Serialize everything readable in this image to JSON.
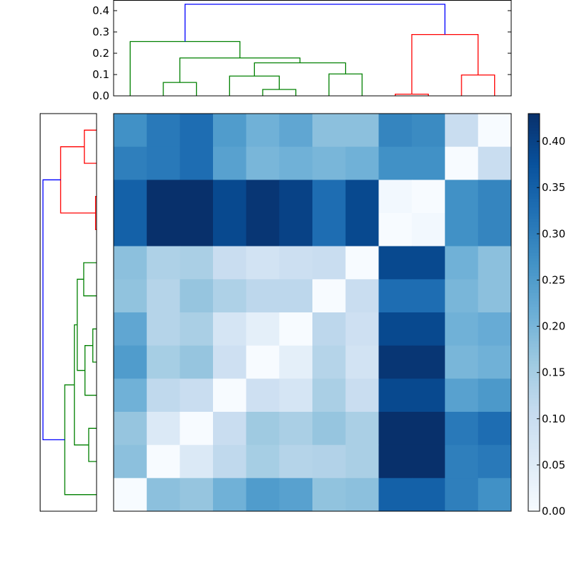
{
  "chart_data": [
    {
      "type": "heatmap",
      "colormap": "Blues",
      "vmin": 0.0,
      "vmax": 0.43,
      "colorbar": {
        "ticks": [
          "0.00",
          "0.05",
          "0.10",
          "0.15",
          "0.20",
          "0.25",
          "0.30",
          "0.35",
          "0.40"
        ],
        "tick_values": [
          0,
          0.05,
          0.1,
          0.15,
          0.2,
          0.25,
          0.3,
          0.35,
          0.4
        ]
      },
      "values": [
        [
          0.27,
          0.31,
          0.33,
          0.25,
          0.21,
          0.23,
          0.18,
          0.18,
          0.29,
          0.28,
          0.1,
          0.0
        ],
        [
          0.3,
          0.31,
          0.33,
          0.24,
          0.2,
          0.21,
          0.2,
          0.21,
          0.27,
          0.27,
          0.0,
          0.1
        ],
        [
          0.35,
          0.43,
          0.43,
          0.39,
          0.42,
          0.4,
          0.33,
          0.39,
          0.01,
          0.0,
          0.27,
          0.29
        ],
        [
          0.35,
          0.43,
          0.43,
          0.39,
          0.42,
          0.4,
          0.33,
          0.39,
          0.0,
          0.01,
          0.27,
          0.29
        ],
        [
          0.18,
          0.14,
          0.145,
          0.1,
          0.08,
          0.095,
          0.1,
          0.0,
          0.39,
          0.39,
          0.21,
          0.18
        ],
        [
          0.175,
          0.13,
          0.17,
          0.14,
          0.12,
          0.12,
          0.0,
          0.1,
          0.33,
          0.33,
          0.2,
          0.18
        ],
        [
          0.23,
          0.13,
          0.145,
          0.075,
          0.04,
          0.0,
          0.12,
          0.09,
          0.39,
          0.39,
          0.21,
          0.22
        ],
        [
          0.25,
          0.15,
          0.17,
          0.09,
          0.0,
          0.04,
          0.13,
          0.08,
          0.42,
          0.42,
          0.2,
          0.21
        ],
        [
          0.21,
          0.115,
          0.1,
          0.0,
          0.09,
          0.075,
          0.145,
          0.1,
          0.39,
          0.39,
          0.24,
          0.255
        ],
        [
          0.17,
          0.06,
          0.0,
          0.1,
          0.16,
          0.145,
          0.17,
          0.145,
          0.43,
          0.43,
          0.31,
          0.33
        ],
        [
          0.18,
          0.0,
          0.06,
          0.115,
          0.15,
          0.13,
          0.135,
          0.145,
          0.43,
          0.43,
          0.3,
          0.31
        ],
        [
          0.0,
          0.18,
          0.17,
          0.21,
          0.25,
          0.24,
          0.175,
          0.18,
          0.35,
          0.35,
          0.3,
          0.27
        ]
      ]
    },
    {
      "type": "dendrogram",
      "orientation": "top",
      "ylim": [
        0,
        0.45
      ],
      "yticks": [
        "0.0",
        "0.1",
        "0.2",
        "0.3",
        "0.4"
      ],
      "ytick_values": [
        0,
        0.1,
        0.2,
        0.3,
        0.4
      ],
      "leaf_count": 12,
      "colors": {
        "green": "#008000",
        "red": "#ff0000",
        "blue": "#0000ff"
      },
      "merges": [
        {
          "a": 4,
          "b": 5,
          "height": 0.03,
          "color": "green"
        },
        {
          "a": 1,
          "b": 2,
          "height": 0.063,
          "color": "green"
        },
        {
          "a": 3,
          "b": 12,
          "height": 0.093,
          "color": "green"
        },
        {
          "a": 6,
          "b": 7,
          "height": 0.103,
          "color": "green"
        },
        {
          "a": 14,
          "b": 15,
          "height": 0.155,
          "color": "green"
        },
        {
          "a": 13,
          "b": 16,
          "height": 0.178,
          "color": "green"
        },
        {
          "a": 0,
          "b": 17,
          "height": 0.255,
          "color": "green"
        },
        {
          "a": 8,
          "b": 9,
          "height": 0.008,
          "color": "red"
        },
        {
          "a": 10,
          "b": 11,
          "height": 0.098,
          "color": "red"
        },
        {
          "a": 19,
          "b": 20,
          "height": 0.288,
          "color": "red"
        },
        {
          "a": 18,
          "b": 21,
          "height": 0.43,
          "color": "blue"
        }
      ]
    },
    {
      "type": "dendrogram",
      "orientation": "left",
      "note_rows": "same linkage as top dendrogram, leaves listed bottom-to-top",
      "xlim": [
        0.45,
        0
      ]
    }
  ]
}
